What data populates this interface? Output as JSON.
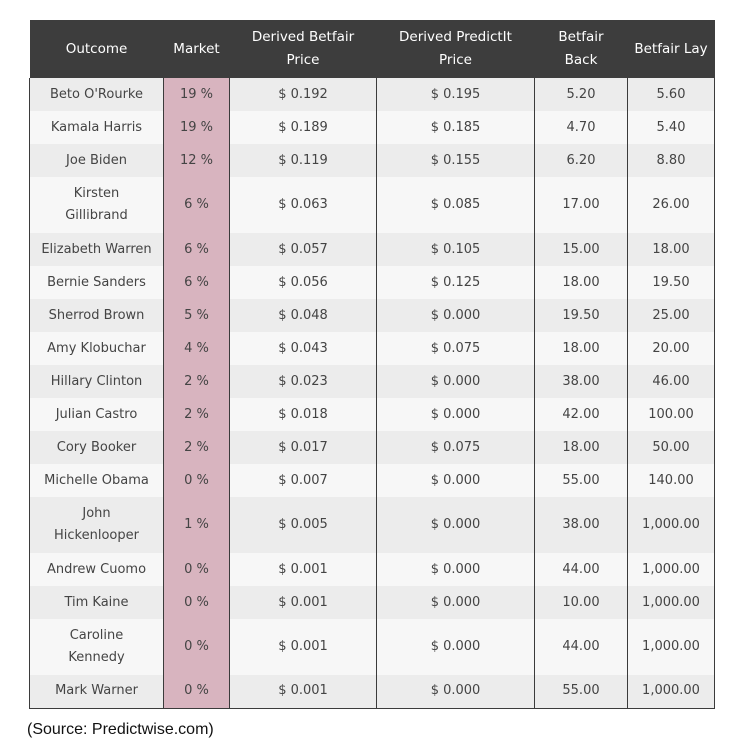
{
  "table": {
    "headers": [
      "Outcome",
      "Market",
      "Derived Betfair Price",
      "Derived PredictIt Price",
      "Betfair Back",
      "Betfair Lay"
    ],
    "rows": [
      [
        "Beto O'Rourke",
        "19 %",
        "$ 0.192",
        "$ 0.195",
        "5.20",
        "5.60"
      ],
      [
        "Kamala Harris",
        "19 %",
        "$ 0.189",
        "$ 0.185",
        "4.70",
        "5.40"
      ],
      [
        "Joe Biden",
        "12 %",
        "$ 0.119",
        "$ 0.155",
        "6.20",
        "8.80"
      ],
      [
        "Kirsten Gillibrand",
        "6 %",
        "$ 0.063",
        "$ 0.085",
        "17.00",
        "26.00"
      ],
      [
        "Elizabeth Warren",
        "6 %",
        "$ 0.057",
        "$ 0.105",
        "15.00",
        "18.00"
      ],
      [
        "Bernie Sanders",
        "6 %",
        "$ 0.056",
        "$ 0.125",
        "18.00",
        "19.50"
      ],
      [
        "Sherrod Brown",
        "5 %",
        "$ 0.048",
        "$ 0.000",
        "19.50",
        "25.00"
      ],
      [
        "Amy Klobuchar",
        "4 %",
        "$ 0.043",
        "$ 0.075",
        "18.00",
        "20.00"
      ],
      [
        "Hillary Clinton",
        "2 %",
        "$ 0.023",
        "$ 0.000",
        "38.00",
        "46.00"
      ],
      [
        "Julian Castro",
        "2 %",
        "$ 0.018",
        "$ 0.000",
        "42.00",
        "100.00"
      ],
      [
        "Cory Booker",
        "2 %",
        "$ 0.017",
        "$ 0.075",
        "18.00",
        "50.00"
      ],
      [
        "Michelle Obama",
        "0 %",
        "$ 0.007",
        "$ 0.000",
        "55.00",
        "140.00"
      ],
      [
        "John Hickenlooper",
        "1 %",
        "$ 0.005",
        "$ 0.000",
        "38.00",
        "1,000.00"
      ],
      [
        "Andrew Cuomo",
        "0 %",
        "$ 0.001",
        "$ 0.000",
        "44.00",
        "1,000.00"
      ],
      [
        "Tim Kaine",
        "0 %",
        "$ 0.001",
        "$ 0.000",
        "10.00",
        "1,000.00"
      ],
      [
        "Caroline Kennedy",
        "0 %",
        "$ 0.001",
        "$ 0.000",
        "44.00",
        "1,000.00"
      ],
      [
        "Mark Warner",
        "0 %",
        "$ 0.001",
        "$ 0.000",
        "55.00",
        "1,000.00"
      ]
    ]
  },
  "source": "(Source: Predictwise.com)",
  "colors": {
    "header_bg": "#3d3d3d",
    "market_highlight": "#d8b4bf",
    "row_odd": "#ececec",
    "row_even": "#f7f7f7"
  }
}
